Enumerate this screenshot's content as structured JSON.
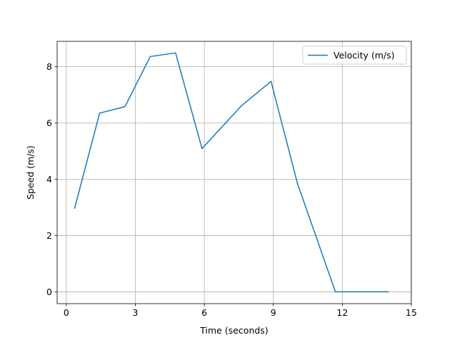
{
  "chart_data": {
    "type": "line",
    "title": "",
    "xlabel": "Time (seconds)",
    "ylabel": "Speed (m/s)",
    "xlim": [
      -0.4,
      15
    ],
    "ylim": [
      -0.42,
      8.9
    ],
    "xticks": [
      0,
      3,
      6,
      9,
      12,
      15
    ],
    "yticks": [
      0,
      2,
      4,
      6,
      8
    ],
    "grid": true,
    "legend": {
      "position": "upper right"
    },
    "series": [
      {
        "name": "Velocity (m/s)",
        "color": "#1f77b4",
        "x": [
          0.36,
          1.45,
          2.55,
          3.65,
          4.75,
          5.9,
          7.6,
          8.9,
          10.05,
          11.7,
          12.8,
          14.0
        ],
        "y": [
          2.97,
          6.35,
          6.58,
          8.36,
          8.49,
          5.09,
          6.6,
          7.48,
          3.85,
          0.0,
          0.0,
          0.0
        ]
      }
    ]
  }
}
